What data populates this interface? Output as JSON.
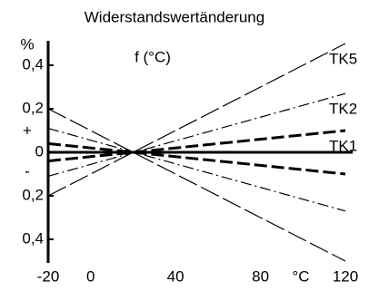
{
  "chart_data": {
    "type": "line",
    "title": "Widerstandswertänderung",
    "annotations": [
      "f (°C)",
      "%",
      "+",
      "-",
      "°C"
    ],
    "x": [
      -20,
      120
    ],
    "xlim": [
      -20,
      120
    ],
    "xticks": [
      -20,
      0,
      40,
      80,
      120
    ],
    "ylim": [
      -0.5,
      0.5
    ],
    "yticks": [
      {
        "value": 0.4,
        "label": "0,4"
      },
      {
        "value": 0.2,
        "label": "0,2"
      },
      0,
      {
        "value": -0.2,
        "label": "0,2"
      },
      {
        "value": -0.4,
        "label": "0,4"
      }
    ],
    "series": [
      {
        "name": "TK5",
        "color": "#000000",
        "style": "long-dash",
        "values": [
          -0.2,
          0.5
        ]
      },
      {
        "color": "#000000",
        "style": "long-dash",
        "values": [
          0.2,
          -0.5
        ]
      },
      {
        "name": "TK2",
        "color": "#000000",
        "style": "dash-dot",
        "values": [
          -0.11,
          0.27
        ]
      },
      {
        "color": "#000000",
        "style": "dash-dot",
        "values": [
          0.11,
          -0.27
        ]
      },
      {
        "name": "TK1",
        "color": "#000000",
        "style": "thick-dash",
        "values": [
          -0.04,
          0.1
        ]
      },
      {
        "color": "#000000",
        "style": "thick-dash",
        "values": [
          0.04,
          -0.1
        ]
      }
    ]
  }
}
